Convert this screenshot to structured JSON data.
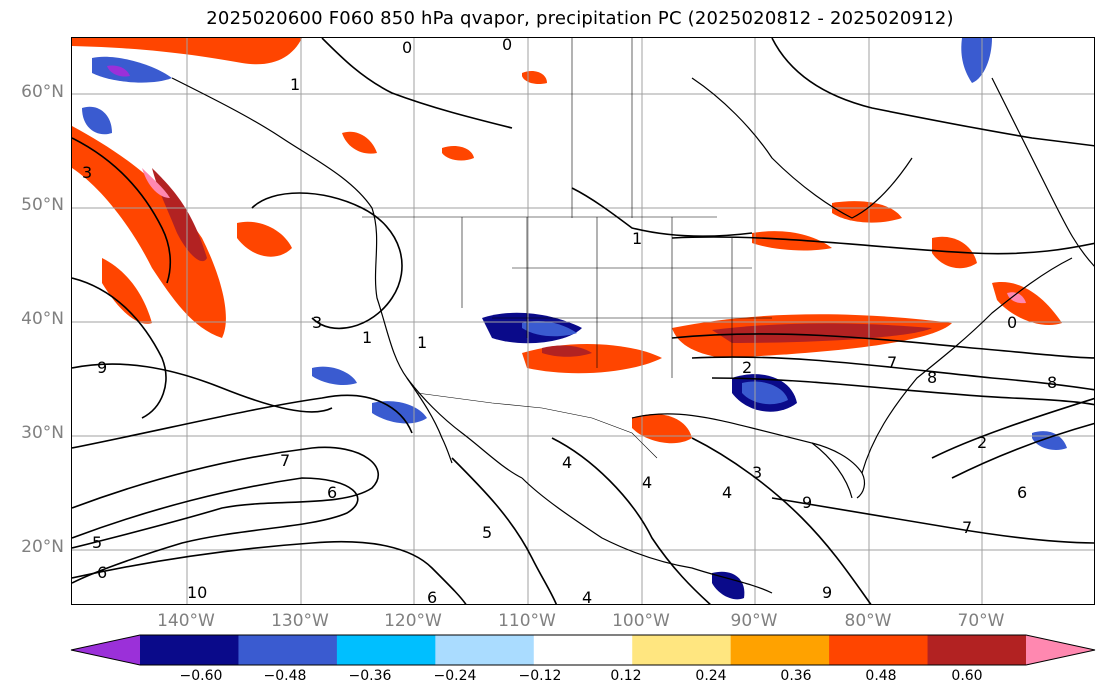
{
  "title": "2025020600 F060 850 hPa qvapor, precipitation PC (2025020812 - 2025020912)",
  "lat_labels": [
    "60°N",
    "50°N",
    "40°N",
    "30°N",
    "20°N"
  ],
  "lon_labels": [
    "140°W",
    "130°W",
    "120°W",
    "110°W",
    "100°W",
    "90°W",
    "80°W",
    "70°W"
  ],
  "colorbar": {
    "tick_labels": [
      "−0.60",
      "−0.48",
      "−0.36",
      "−0.24",
      "−0.12",
      "0.12",
      "0.24",
      "0.36",
      "0.48",
      "0.60"
    ],
    "colors": [
      "#9b30d9",
      "#0a0a8a",
      "#3a5bd0",
      "#00bfff",
      "#aadcff",
      "#ffffff",
      "#ffe680",
      "#ffa200",
      "#ff4500",
      "#b22222",
      "#ff88b0"
    ]
  },
  "contour_labels": [
    "1",
    "1",
    "1",
    "3",
    "3",
    "1",
    "4",
    "7",
    "6",
    "2",
    "9",
    "10",
    "5",
    "6",
    "4",
    "9",
    "4",
    "3",
    "2",
    "8",
    "7",
    "8",
    "6",
    "7",
    "4",
    "0",
    "0",
    "0",
    "5",
    "6",
    "9"
  ],
  "colors": {
    "gridline": "#a0a0a0",
    "contour": "#000000",
    "tick_label": "#808080"
  }
}
